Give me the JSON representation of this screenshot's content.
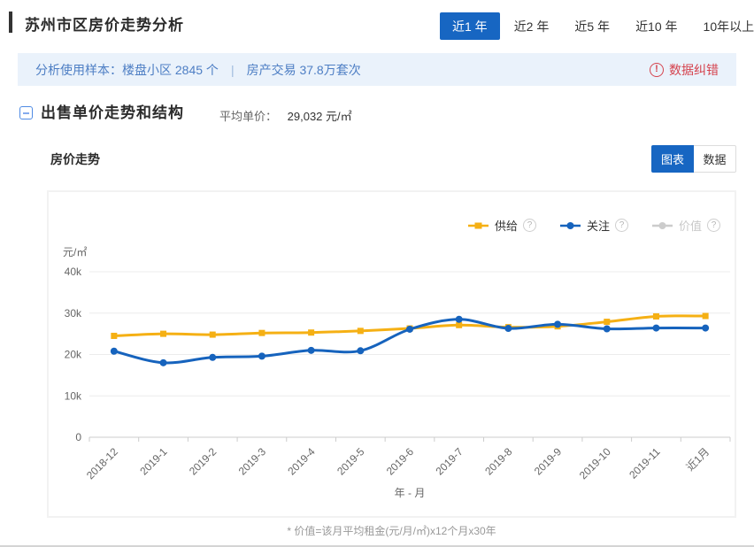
{
  "header": {
    "title": "苏州市区房价走势分析",
    "range_tabs": [
      {
        "label": "近1 年",
        "active": true
      },
      {
        "label": "近2 年",
        "active": false
      },
      {
        "label": "近5 年",
        "active": false
      },
      {
        "label": "近10 年",
        "active": false
      },
      {
        "label": "10年以上",
        "active": false
      }
    ]
  },
  "sample_bar": {
    "label": "分析使用样本：",
    "item1": "楼盘小区 2845 个",
    "divider": "|",
    "item2": "房产交易 37.8万套次",
    "correction_label": "数据纠错",
    "correction_icon": "!"
  },
  "section": {
    "title": "出售单价走势和结构",
    "avg_label": "平均单价：",
    "avg_value": "29,032 元/㎡"
  },
  "chart": {
    "title": "房价走势",
    "view_toggle": [
      {
        "label": "图表",
        "active": true
      },
      {
        "label": "数据",
        "active": false
      }
    ],
    "help_icon": "?",
    "footnote": "* 价值=该月平均租金(元/月/㎡)x12个月x30年"
  },
  "chart_data": {
    "type": "line",
    "title": "房价走势",
    "categories": [
      "2018-12",
      "2019-1",
      "2019-2",
      "2019-3",
      "2019-4",
      "2019-5",
      "2019-6",
      "2019-7",
      "2019-8",
      "2019-9",
      "2019-10",
      "2019-11",
      "近1月"
    ],
    "series": [
      {
        "name": "供给",
        "color": "#F5B014",
        "marker": "square",
        "values": [
          24500,
          25000,
          24800,
          25200,
          25300,
          25700,
          26300,
          27100,
          26600,
          26800,
          27900,
          29200,
          29300
        ]
      },
      {
        "name": "关注",
        "color": "#1663BD",
        "marker": "circle",
        "values": [
          20800,
          18000,
          19300,
          19600,
          21000,
          20900,
          26100,
          28500,
          26300,
          27300,
          26200,
          26400,
          26400
        ]
      },
      {
        "name": "价值",
        "color": "#CCCCCC",
        "marker": "circle",
        "values": null,
        "disabled": true
      }
    ],
    "y_axis": {
      "unit": "元/㎡",
      "ticks": [
        0,
        10000,
        20000,
        30000,
        40000
      ],
      "tick_labels": [
        "0",
        "10k",
        "20k",
        "30k",
        "40k"
      ],
      "max": 40000
    },
    "x_axis": {
      "title": "年 - 月"
    },
    "legend_position": "top-right",
    "grid": true,
    "ylim": [
      0,
      40000
    ]
  },
  "colors": {
    "accent_blue": "#1766C2",
    "supply_gold": "#F5B014",
    "focus_blue": "#1663BD",
    "disabled_gray": "#CCCCCC",
    "error_red": "#D5434E",
    "info_bg": "#EAF2FB",
    "info_text": "#4D7EC4"
  }
}
